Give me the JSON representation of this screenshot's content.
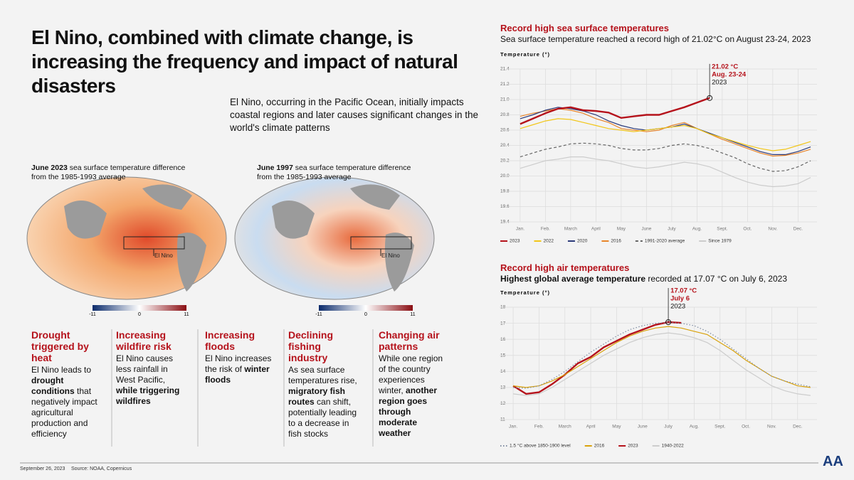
{
  "header": {
    "title": "El Nino, combined with climate change, is increasing the frequency and impact of natural disasters",
    "intro": "El Nino, occurring in the Pacific Ocean, initially impacts coastal regions and later causes significant changes in the world's climate patterns"
  },
  "maps": [
    {
      "caption": [
        {
          "t": "June 2023",
          "b": true
        },
        {
          "t": " sea surface temperature difference from the 1985-1993 average",
          "b": false
        }
      ],
      "box_label": "El Nino",
      "scale": [
        "-11",
        "0",
        "11"
      ],
      "warm": true
    },
    {
      "caption": [
        {
          "t": "June 1997",
          "b": true
        },
        {
          "t": " sea surface temperature difference from the 1985-1993 average",
          "b": false
        }
      ],
      "box_label": "El Nino",
      "scale": [
        "-11",
        "0",
        "11"
      ],
      "warm": false
    }
  ],
  "impacts": [
    {
      "title": "Drought triggered by heat",
      "body": [
        {
          "t": "El Nino leads to ",
          "b": false
        },
        {
          "t": "drought conditions",
          "b": true
        },
        {
          "t": " that negatively impact agricultural production and efficiency",
          "b": false
        }
      ]
    },
    {
      "title": "Increasing wildfire risk",
      "body": [
        {
          "t": "El Nino causes less rainfall in West Pacific, ",
          "b": false
        },
        {
          "t": "while triggering wildfires",
          "b": true
        }
      ]
    },
    {
      "title": "Increasing floods",
      "body": [
        {
          "t": "El Nino increases the risk of ",
          "b": false
        },
        {
          "t": "winter floods",
          "b": true
        }
      ]
    },
    {
      "title": "Declining fishing industry",
      "body": [
        {
          "t": "As sea surface temperatures rise, ",
          "b": false
        },
        {
          "t": "migratory fish routes",
          "b": true
        },
        {
          "t": " can shift, potentially leading to a decrease in fish stocks",
          "b": false
        }
      ]
    },
    {
      "title": "Changing air patterns",
      "body": [
        {
          "t": "While one region of the country experiences winter, ",
          "b": false
        },
        {
          "t": "another region goes through moderate weather",
          "b": true
        }
      ]
    }
  ],
  "footer": {
    "date": "September 26, 2023",
    "source": "Source: NOAA, Copernicus",
    "logo": "AA"
  },
  "chart_data": [
    {
      "type": "line",
      "title": "Record high sea surface temperatures",
      "subtitle": [
        {
          "t": "Sea surface temperature reached a record high of 21.02°C on August 23-24, 2023",
          "b": false
        }
      ],
      "y_label": "Temperature (°)",
      "categories": [
        "Jan.",
        null,
        "Feb.",
        null,
        "March",
        null,
        "April",
        null,
        "May",
        null,
        "June",
        null,
        "July",
        null,
        "Aug.",
        null,
        "Sept.",
        null,
        "Oct.",
        null,
        "Nov.",
        null,
        "Dec.",
        null
      ],
      "ylim": [
        19.4,
        21.4
      ],
      "yticks": [
        19.4,
        19.6,
        19.8,
        {
          "value": 20,
          "label": "20.0"
        },
        20.2,
        20.4,
        20.6,
        20.8,
        {
          "value": 21,
          "label": "21.0"
        },
        21.2,
        21.4
      ],
      "grid": true,
      "annotation": [
        "21.02 °C",
        "Aug. 23-24",
        "2023"
      ],
      "series": [
        {
          "name": "2023",
          "color": "#b5121b",
          "style": "solid",
          "values": [
            20.68,
            20.75,
            20.82,
            20.88,
            20.9,
            20.86,
            20.85,
            20.83,
            20.76,
            20.78,
            20.8,
            20.8,
            20.85,
            20.9,
            20.96,
            21.02,
            null,
            null,
            null,
            null,
            null,
            null,
            null,
            null
          ]
        },
        {
          "name": "2022",
          "color": "#f2c618",
          "style": "solid",
          "values": [
            20.62,
            20.67,
            20.72,
            20.75,
            20.74,
            20.7,
            20.66,
            20.62,
            20.6,
            20.58,
            20.6,
            20.62,
            20.64,
            20.66,
            20.62,
            20.55,
            20.5,
            20.45,
            20.4,
            20.36,
            20.33,
            20.35,
            20.4,
            20.45
          ]
        },
        {
          "name": "2020",
          "color": "#2b3a7a",
          "style": "solid",
          "values": [
            20.75,
            20.8,
            20.86,
            20.9,
            20.88,
            20.85,
            20.8,
            20.72,
            20.66,
            20.62,
            20.6,
            20.62,
            20.64,
            20.68,
            20.62,
            20.56,
            20.5,
            20.44,
            20.38,
            20.32,
            20.28,
            20.28,
            20.32,
            20.38
          ]
        },
        {
          "name": "2016",
          "color": "#e8852a",
          "style": "solid",
          "values": [
            20.78,
            20.82,
            20.85,
            20.88,
            20.86,
            20.82,
            20.75,
            20.7,
            20.62,
            20.6,
            20.58,
            20.6,
            20.66,
            20.7,
            20.62,
            20.55,
            20.48,
            20.42,
            20.36,
            20.3,
            20.26,
            20.27,
            20.3,
            20.35
          ]
        },
        {
          "name": "1991-2020 average",
          "color": "#666666",
          "style": "dashed",
          "values": [
            20.25,
            20.3,
            20.35,
            20.38,
            20.42,
            20.43,
            20.42,
            20.4,
            20.36,
            20.34,
            20.34,
            20.36,
            20.4,
            20.42,
            20.4,
            20.36,
            20.3,
            20.24,
            20.16,
            20.1,
            20.06,
            20.07,
            20.12,
            20.2
          ]
        },
        {
          "name": "Since 1979",
          "color": "#cccccc",
          "style": "solid",
          "values": [
            20.1,
            20.15,
            20.2,
            20.22,
            20.25,
            20.25,
            20.22,
            20.2,
            20.16,
            20.12,
            20.1,
            20.12,
            20.15,
            20.18,
            20.16,
            20.12,
            20.05,
            19.98,
            19.92,
            19.88,
            19.86,
            19.87,
            19.9,
            19.98
          ]
        }
      ]
    },
    {
      "type": "line",
      "title": "Record high air temperatures",
      "subtitle": [
        {
          "t": "Highest global average temperature",
          "b": true
        },
        {
          "t": " recorded at 17.07 °C on July 6, 2023",
          "b": false
        }
      ],
      "y_label": "Temperature (°)",
      "categories": [
        "Jan.",
        null,
        "Feb.",
        null,
        "March",
        null,
        "April",
        null,
        "May",
        null,
        "June",
        null,
        "July",
        null,
        "Aug.",
        null,
        "Sept.",
        null,
        "Oct.",
        null,
        "Nov.",
        null,
        "Dec.",
        null
      ],
      "ylim": [
        11,
        18
      ],
      "yticks": [
        11,
        12,
        13,
        14,
        15,
        16,
        17,
        18
      ],
      "grid": true,
      "annotation": [
        "17.07 °C",
        "July 6",
        "2023"
      ],
      "series": [
        {
          "name": "1.5 °C above 1850-1900 level",
          "color": "#7d8aa0",
          "style": "dotted",
          "values": [
            13.0,
            12.95,
            13.1,
            13.5,
            14.0,
            14.6,
            15.2,
            15.7,
            16.2,
            16.6,
            16.85,
            17.0,
            17.05,
            17.0,
            16.85,
            16.5,
            16.0,
            15.4,
            14.8,
            14.2,
            13.7,
            13.4,
            13.2,
            13.05
          ]
        },
        {
          "name": "2016",
          "color": "#d9a20b",
          "style": "solid",
          "values": [
            13.1,
            13.0,
            13.1,
            13.4,
            13.8,
            14.3,
            14.8,
            15.3,
            15.8,
            16.2,
            16.5,
            16.7,
            16.8,
            16.7,
            16.5,
            16.3,
            15.8,
            15.3,
            14.7,
            14.2,
            13.7,
            13.4,
            13.1,
            13.0
          ]
        },
        {
          "name": "2023",
          "color": "#b5121b",
          "style": "solid",
          "values": [
            13.1,
            12.6,
            12.7,
            13.2,
            13.8,
            14.5,
            14.9,
            15.5,
            15.9,
            16.3,
            16.6,
            16.9,
            17.07,
            17.02,
            null,
            null,
            null,
            null,
            null,
            null,
            null,
            null,
            null,
            null
          ]
        },
        {
          "name": "1940-2022",
          "color": "#cccccc",
          "style": "solid",
          "values": [
            12.6,
            12.5,
            12.6,
            13.0,
            13.5,
            14.0,
            14.5,
            15.0,
            15.4,
            15.8,
            16.1,
            16.3,
            16.4,
            16.3,
            16.1,
            15.8,
            15.3,
            14.7,
            14.1,
            13.6,
            13.1,
            12.8,
            12.6,
            12.5
          ]
        }
      ]
    }
  ]
}
